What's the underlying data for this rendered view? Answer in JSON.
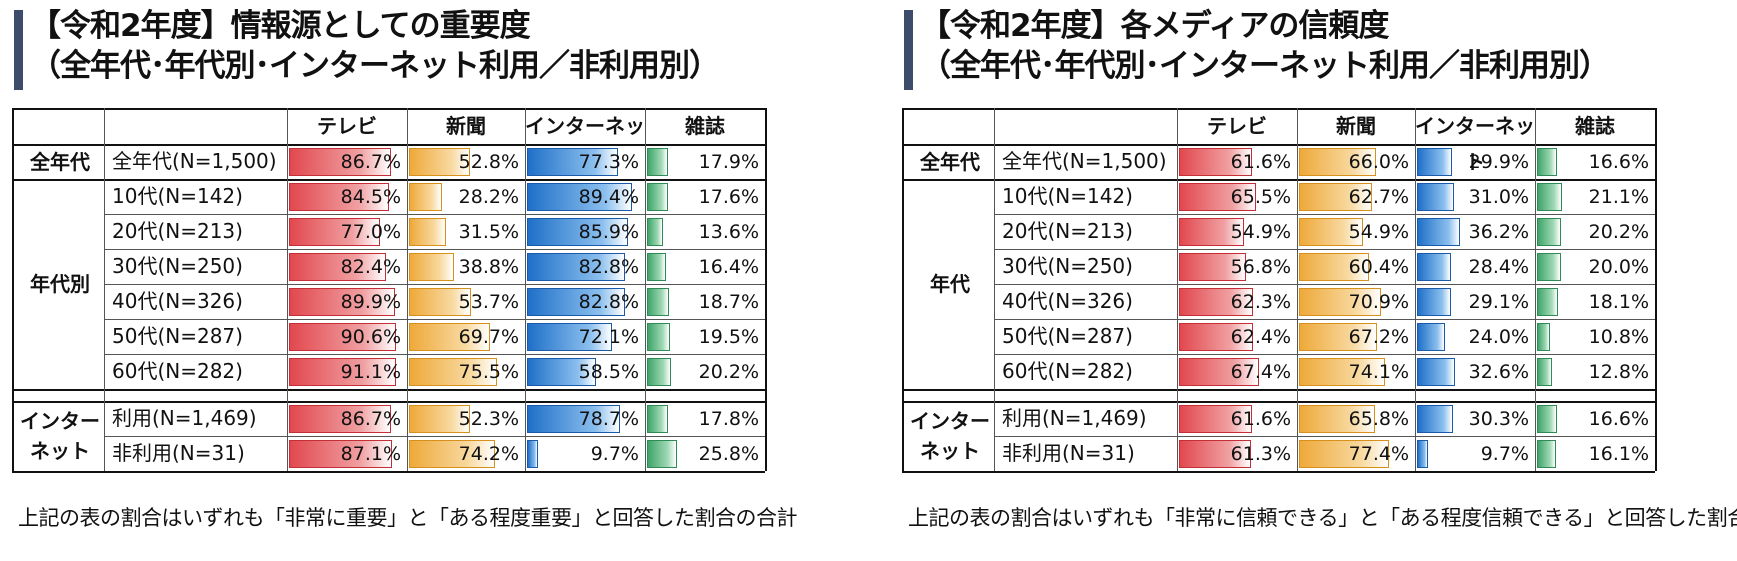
{
  "chart_data": [
    {
      "type": "table",
      "title_line1": "【令和2年度】情報源としての重要度",
      "title_line2": "（全年代･年代別･インターネット利用／非利用別）",
      "columns": [
        "テレビ",
        "新聞",
        "インターネット",
        "雑誌"
      ],
      "groups": [
        {
          "name": "全年代",
          "rows": [
            {
              "label": "全年代(N=1,500)",
              "values": [
                86.7,
                52.8,
                77.3,
                17.9
              ],
              "display": [
                "86.7%",
                "52.8%",
                "77.3%",
                "17.9%"
              ]
            }
          ]
        },
        {
          "name": "年代別",
          "rows": [
            {
              "label": "10代(N=142)",
              "values": [
                84.5,
                28.2,
                89.4,
                17.6
              ],
              "display": [
                "84.5%",
                "28.2%",
                "89.4%",
                "17.6%"
              ]
            },
            {
              "label": "20代(N=213)",
              "values": [
                77.0,
                31.5,
                85.9,
                13.6
              ],
              "display": [
                "77.0%",
                "31.5%",
                "85.9%",
                "13.6%"
              ]
            },
            {
              "label": "30代(N=250)",
              "values": [
                82.4,
                38.8,
                82.8,
                16.4
              ],
              "display": [
                "82.4%",
                "38.8%",
                "82.8%",
                "16.4%"
              ]
            },
            {
              "label": "40代(N=326)",
              "values": [
                89.9,
                53.7,
                82.8,
                18.7
              ],
              "display": [
                "89.9%",
                "53.7%",
                "82.8%",
                "18.7%"
              ]
            },
            {
              "label": "50代(N=287)",
              "values": [
                90.6,
                69.7,
                72.1,
                19.5
              ],
              "display": [
                "90.6%",
                "69.7%",
                "72.1%",
                "19.5%"
              ]
            },
            {
              "label": "60代(N=282)",
              "values": [
                91.1,
                75.5,
                58.5,
                20.2
              ],
              "display": [
                "91.1%",
                "75.5%",
                "58.5%",
                "20.2%"
              ]
            }
          ]
        },
        {
          "name_line1": "インター",
          "name_line2": "ネット",
          "rows": [
            {
              "label": "利用(N=1,469)",
              "values": [
                86.7,
                52.3,
                78.7,
                17.8
              ],
              "display": [
                "86.7%",
                "52.3%",
                "78.7%",
                "17.8%"
              ]
            },
            {
              "label": "非利用(N=31)",
              "values": [
                87.1,
                74.2,
                9.7,
                25.8
              ],
              "display": [
                "87.1%",
                "74.2%",
                "9.7%",
                "25.8%"
              ]
            }
          ]
        }
      ],
      "note": "上記の表の割合はいずれも「非常に重要」と「ある程度重要」と回答した割合の合計",
      "xlim": [
        0,
        100
      ]
    },
    {
      "type": "table",
      "title_line1": "【令和2年度】各メディアの信頼度",
      "title_line2": "（全年代･年代別･インターネット利用／非利用別）",
      "columns": [
        "テレビ",
        "新聞",
        "インターネット",
        "雑誌"
      ],
      "groups": [
        {
          "name": "全年代",
          "rows": [
            {
              "label": "全年代(N=1,500)",
              "values": [
                61.6,
                66.0,
                29.9,
                16.6
              ],
              "display": [
                "61.6%",
                "66.0%",
                "29.9%",
                "16.6%"
              ]
            }
          ]
        },
        {
          "name": "年代",
          "rows": [
            {
              "label": "10代(N=142)",
              "values": [
                65.5,
                62.7,
                31.0,
                21.1
              ],
              "display": [
                "65.5%",
                "62.7%",
                "31.0%",
                "21.1%"
              ]
            },
            {
              "label": "20代(N=213)",
              "values": [
                54.9,
                54.9,
                36.2,
                20.2
              ],
              "display": [
                "54.9%",
                "54.9%",
                "36.2%",
                "20.2%"
              ]
            },
            {
              "label": "30代(N=250)",
              "values": [
                56.8,
                60.4,
                28.4,
                20.0
              ],
              "display": [
                "56.8%",
                "60.4%",
                "28.4%",
                "20.0%"
              ]
            },
            {
              "label": "40代(N=326)",
              "values": [
                62.3,
                70.9,
                29.1,
                18.1
              ],
              "display": [
                "62.3%",
                "70.9%",
                "29.1%",
                "18.1%"
              ]
            },
            {
              "label": "50代(N=287)",
              "values": [
                62.4,
                67.2,
                24.0,
                10.8
              ],
              "display": [
                "62.4%",
                "67.2%",
                "24.0%",
                "10.8%"
              ]
            },
            {
              "label": "60代(N=282)",
              "values": [
                67.4,
                74.1,
                32.6,
                12.8
              ],
              "display": [
                "67.4%",
                "74.1%",
                "32.6%",
                "12.8%"
              ]
            }
          ]
        },
        {
          "name_line1": "インター",
          "name_line2": "ネット",
          "rows": [
            {
              "label": "利用(N=1,469)",
              "values": [
                61.6,
                65.8,
                30.3,
                16.6
              ],
              "display": [
                "61.6%",
                "65.8%",
                "30.3%",
                "16.6%"
              ]
            },
            {
              "label": "非利用(N=31)",
              "values": [
                61.3,
                77.4,
                9.7,
                16.1
              ],
              "display": [
                "61.3%",
                "77.4%",
                "9.7%",
                "16.1%"
              ]
            }
          ]
        }
      ],
      "note": "上記の表の割合はいずれも「非常に信頼できる」と「ある程度信頼できる」と回答した割合の合計",
      "xlim": [
        0,
        100
      ]
    }
  ],
  "colors": {
    "tv": "#e1484e",
    "newspaper": "#eea93a",
    "internet": "#1f70c8",
    "magazine": "#3fa46a",
    "title_bar": "#3d4c6b"
  }
}
